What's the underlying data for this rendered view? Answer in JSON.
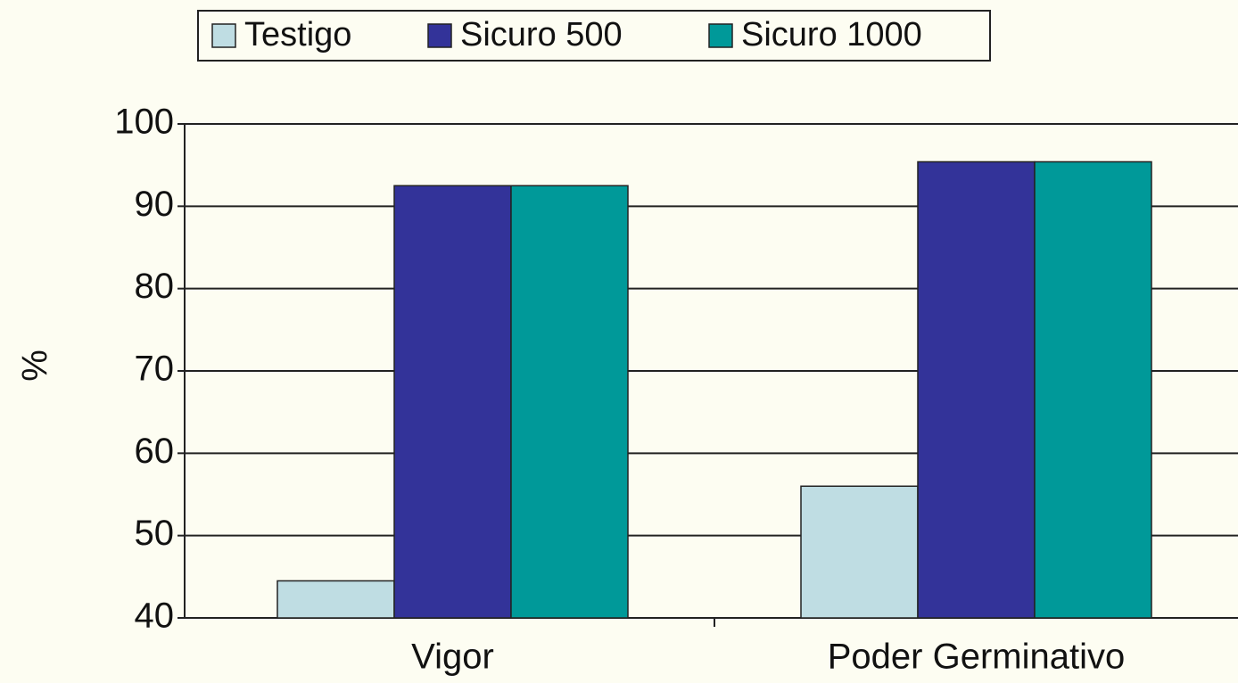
{
  "chart_data": {
    "type": "bar",
    "y_label": "%",
    "categories": [
      "Vigor",
      "Poder Germinativo"
    ],
    "series": [
      {
        "name": "Testigo",
        "color": "#bfdde3",
        "values": [
          44.5,
          56
        ]
      },
      {
        "name": "Sicuro 500",
        "color": "#333399",
        "values": [
          92.5,
          95.4
        ]
      },
      {
        "name": "Sicuro 1000",
        "color": "#009999",
        "values": [
          92.5,
          95.4
        ]
      }
    ],
    "ylim": [
      40,
      100
    ],
    "yticks": [
      40,
      50,
      60,
      70,
      80,
      90,
      100
    ],
    "grid": true,
    "legend": "top"
  }
}
